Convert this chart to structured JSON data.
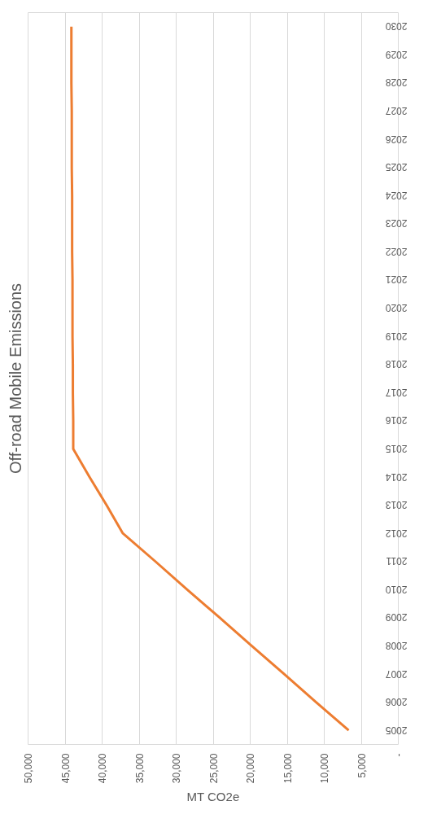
{
  "chart_data": {
    "type": "line",
    "title": "Off-road Mobile Emissions",
    "xlabel": "MT CO2e",
    "series": [
      {
        "color": "#ed7d31",
        "x": [
          6700,
          11100,
          15400,
          19800,
          24100,
          28500,
          32800,
          37200,
          39400,
          41700,
          43900,
          43900,
          43950,
          43950,
          44000,
          44000,
          44000,
          44050,
          44050,
          44050,
          44100,
          44100,
          44100,
          44150,
          44150,
          44150
        ],
        "values": [
          2005,
          2006,
          2007,
          2008,
          2009,
          2010,
          2011,
          2012,
          2013,
          2014,
          2015,
          2016,
          2017,
          2018,
          2019,
          2020,
          2021,
          2022,
          2023,
          2024,
          2025,
          2026,
          2027,
          2028,
          2029,
          2030
        ]
      }
    ],
    "xlim": [
      50000,
      0
    ],
    "xticks": [
      {
        "value": 50000,
        "label": "50,000"
      },
      {
        "value": 45000,
        "label": "45,000"
      },
      {
        "value": 40000,
        "label": "40,000"
      },
      {
        "value": 35000,
        "label": "35,000"
      },
      {
        "value": 30000,
        "label": "30,000"
      },
      {
        "value": 25000,
        "label": "25,000"
      },
      {
        "value": 20000,
        "label": "20,000"
      },
      {
        "value": 15000,
        "label": "15,000"
      },
      {
        "value": 10000,
        "label": "10,000"
      },
      {
        "value": 5000,
        "label": "5,000"
      },
      {
        "value": 0,
        "label": "-"
      }
    ],
    "ylim": [
      2004.5,
      2030.5
    ],
    "yticks": [
      2005,
      2006,
      2007,
      2008,
      2009,
      2010,
      2011,
      2012,
      2013,
      2014,
      2015,
      2016,
      2017,
      2018,
      2019,
      2020,
      2021,
      2022,
      2023,
      2024,
      2025,
      2026,
      2027,
      2028,
      2029,
      2030
    ],
    "grid": "x"
  }
}
